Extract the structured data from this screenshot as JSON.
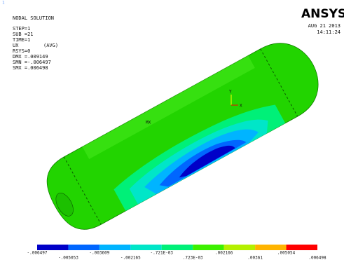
{
  "corner_number": "1",
  "info": {
    "title": "NODAL SOLUTION",
    "lines": [
      "STEP=1",
      "SUB =21",
      "TIME=1",
      "UX",
      "(AVG)",
      "RSYS=0",
      "DMX =.009149",
      "SMN =-.006497",
      "SMX =.006498"
    ]
  },
  "logo": "ANSYS",
  "date": "AUG 21 2013",
  "time": "14:11:24",
  "model_labels": {
    "max": "MX",
    "axis_y": "Y",
    "axis_x": "X"
  },
  "legend": {
    "colors": [
      "#0000c8",
      "#0066ff",
      "#00b4ff",
      "#00e6c8",
      "#00f078",
      "#3cf000",
      "#b4f000",
      "#ffb400",
      "#ff0000"
    ],
    "labels": [
      "-.006497",
      "-.005053",
      "-.003609",
      "-.002165",
      "-.721E-03",
      ".723E-03",
      ".002166",
      ".00361",
      ".005054",
      ".006498"
    ]
  }
}
